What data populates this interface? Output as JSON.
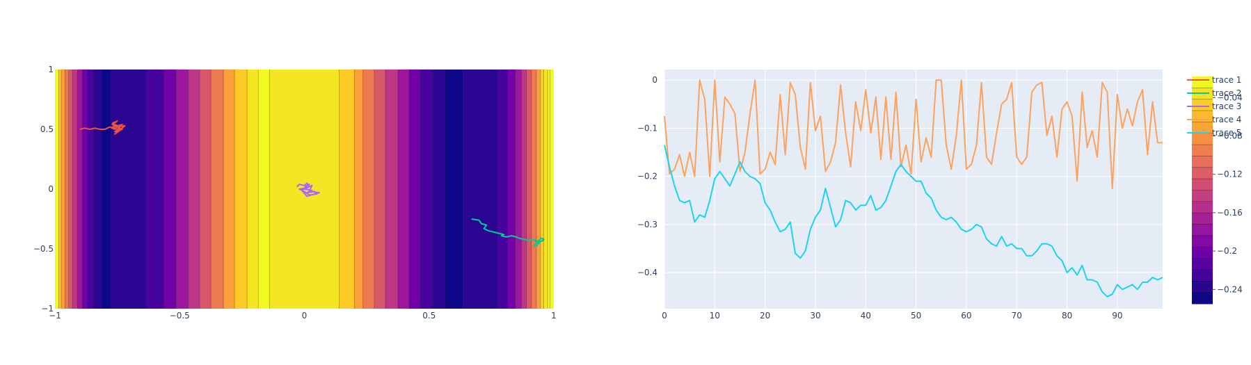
{
  "colors": {
    "plot_bg_right": "#e5ecf6",
    "grid": "#ffffff",
    "text": "#2a3f5f",
    "colorscale": [
      "#0d0887",
      "#46039f",
      "#7201a8",
      "#9c179e",
      "#bd3786",
      "#d8576b",
      "#ed7953",
      "#fb9f3a",
      "#fdca26",
      "#f0f921"
    ]
  },
  "chart_data": [
    {
      "type": "heatmap",
      "subtype": "contour",
      "x_range": [
        -1,
        1
      ],
      "y_range": [
        -1,
        1
      ],
      "xticks": [
        "−1",
        "−0.5",
        "0",
        "0.5",
        "1"
      ],
      "yticks": [
        "1",
        "0.5",
        "0",
        "−0.5",
        "−1"
      ],
      "xtick_values": [
        -1,
        -0.5,
        0,
        0.5,
        1
      ],
      "ytick_values": [
        1,
        0.5,
        0,
        -0.5,
        -1
      ],
      "contour_boundaries": [
        -0.985,
        -0.975,
        -0.96,
        -0.945,
        -0.93,
        -0.91,
        -0.89,
        -0.87,
        -0.845,
        -0.815,
        -0.775,
        -0.635,
        -0.565,
        -0.515,
        -0.465,
        -0.42,
        -0.375,
        -0.325,
        -0.28,
        -0.23,
        -0.185,
        -0.14,
        0.14,
        0.2,
        0.235,
        0.28,
        0.325,
        0.375,
        0.42,
        0.465,
        0.515,
        0.565,
        0.635,
        0.775,
        0.815,
        0.845,
        0.87,
        0.89,
        0.91,
        0.93,
        0.945,
        0.96,
        0.975,
        0.985
      ],
      "contour_bands": [
        9,
        8,
        7,
        6,
        5,
        4,
        3,
        2,
        1,
        0.5,
        0,
        0.5,
        1,
        2,
        3,
        4,
        5,
        6,
        7,
        8,
        8.6,
        9,
        8.6,
        8,
        7,
        6,
        5,
        4,
        3,
        2,
        1,
        0.5,
        0,
        0.5,
        1,
        2,
        3,
        4,
        5,
        6,
        7,
        8,
        8.6,
        9,
        9
      ],
      "traces": [
        {
          "name": "trace 1",
          "color": "#ef553b",
          "center": [
            -0.76,
            0.51
          ],
          "start": [
            -0.9,
            0.5
          ],
          "points": [
            [
              -0.9,
              0.5
            ],
            [
              -0.88,
              0.51
            ],
            [
              -0.86,
              0.5
            ],
            [
              -0.84,
              0.51
            ],
            [
              -0.82,
              0.5
            ],
            [
              -0.8,
              0.5
            ],
            [
              -0.79,
              0.51
            ],
            [
              -0.78,
              0.52
            ],
            [
              -0.76,
              0.5
            ],
            [
              -0.75,
              0.53
            ],
            [
              -0.77,
              0.55
            ],
            [
              -0.75,
              0.57
            ],
            [
              -0.77,
              0.54
            ],
            [
              -0.74,
              0.51
            ],
            [
              -0.76,
              0.48
            ],
            [
              -0.73,
              0.5
            ],
            [
              -0.75,
              0.52
            ],
            [
              -0.72,
              0.53
            ],
            [
              -0.76,
              0.46
            ],
            [
              -0.74,
              0.49
            ],
            [
              -0.77,
              0.52
            ],
            [
              -0.73,
              0.54
            ],
            [
              -0.75,
              0.5
            ]
          ]
        },
        {
          "name": "trace 2",
          "color": "#00cc96",
          "points": [
            [
              0.67,
              -0.25
            ],
            [
              0.7,
              -0.26
            ],
            [
              0.71,
              -0.29
            ],
            [
              0.73,
              -0.3
            ],
            [
              0.72,
              -0.33
            ],
            [
              0.74,
              -0.35
            ],
            [
              0.76,
              -0.36
            ],
            [
              0.78,
              -0.37
            ],
            [
              0.8,
              -0.38
            ],
            [
              0.79,
              -0.39
            ],
            [
              0.81,
              -0.4
            ],
            [
              0.83,
              -0.39
            ],
            [
              0.85,
              -0.4
            ],
            [
              0.86,
              -0.41
            ],
            [
              0.88,
              -0.42
            ],
            [
              0.9,
              -0.43
            ],
            [
              0.92,
              -0.42
            ],
            [
              0.93,
              -0.44
            ],
            [
              0.94,
              -0.43
            ],
            [
              0.95,
              -0.41
            ],
            [
              0.96,
              -0.42
            ],
            [
              0.94,
              -0.45
            ],
            [
              0.93,
              -0.48
            ],
            [
              0.92,
              -0.47
            ],
            [
              0.94,
              -0.44
            ],
            [
              0.96,
              -0.43
            ]
          ]
        },
        {
          "name": "trace 3",
          "color": "#ab63fa",
          "points": [
            [
              -0.03,
              0.02
            ],
            [
              -0.02,
              0.04
            ],
            [
              0.0,
              0.03
            ],
            [
              0.01,
              0.05
            ],
            [
              0.02,
              0.02
            ],
            [
              0.0,
              0.0
            ],
            [
              0.03,
              -0.01
            ],
            [
              0.01,
              -0.03
            ],
            [
              0.04,
              -0.02
            ],
            [
              0.05,
              -0.04
            ],
            [
              0.02,
              -0.05
            ],
            [
              0.0,
              -0.02
            ],
            [
              -0.02,
              0.0
            ],
            [
              0.01,
              0.01
            ],
            [
              0.03,
              0.03
            ],
            [
              0.02,
              -0.02
            ],
            [
              0.06,
              -0.03
            ],
            [
              0.01,
              -0.06
            ],
            [
              -0.01,
              -0.01
            ],
            [
              0.02,
              0.04
            ],
            [
              0.0,
              0.02
            ]
          ]
        }
      ]
    },
    {
      "type": "line",
      "x_range": [
        0,
        99
      ],
      "y_range": [
        -0.475,
        0.022
      ],
      "xticks": [
        "0",
        "10",
        "20",
        "30",
        "40",
        "50",
        "60",
        "70",
        "80",
        "90"
      ],
      "xtick_values": [
        0,
        10,
        20,
        30,
        40,
        50,
        60,
        70,
        80,
        90
      ],
      "yticks": [
        "0",
        "−0.1",
        "−0.2",
        "−0.3",
        "−0.4"
      ],
      "ytick_values": [
        0,
        -0.1,
        -0.2,
        -0.3,
        -0.4
      ],
      "series": [
        {
          "name": "trace 4",
          "color": "#ffa15a",
          "values": [
            -0.075,
            -0.195,
            -0.185,
            -0.155,
            -0.2,
            -0.15,
            -0.2,
            0.0,
            -0.04,
            -0.2,
            0.0,
            -0.17,
            -0.035,
            -0.05,
            -0.07,
            -0.19,
            -0.15,
            -0.07,
            0.0,
            -0.195,
            -0.185,
            -0.15,
            -0.175,
            -0.03,
            -0.155,
            -0.005,
            -0.03,
            -0.14,
            -0.185,
            -0.005,
            -0.105,
            -0.075,
            -0.19,
            -0.17,
            -0.13,
            -0.01,
            -0.11,
            -0.18,
            -0.045,
            -0.105,
            -0.02,
            -0.11,
            -0.035,
            -0.165,
            -0.035,
            -0.165,
            -0.025,
            -0.18,
            -0.135,
            -0.195,
            -0.04,
            -0.17,
            -0.12,
            -0.16,
            -0.0,
            -0.0,
            -0.135,
            -0.185,
            -0.115,
            0.0,
            -0.185,
            -0.175,
            -0.135,
            -0.005,
            -0.16,
            -0.175,
            -0.11,
            -0.05,
            -0.04,
            -0.005,
            -0.16,
            -0.175,
            -0.16,
            -0.025,
            -0.01,
            -0.005,
            -0.115,
            -0.075,
            -0.16,
            -0.06,
            -0.045,
            -0.075,
            -0.21,
            -0.025,
            -0.14,
            -0.105,
            -0.16,
            -0.005,
            -0.025,
            -0.225,
            -0.03,
            -0.1,
            -0.06,
            -0.095,
            -0.045,
            -0.02,
            -0.155,
            -0.045,
            -0.13,
            -0.13
          ]
        },
        {
          "name": "trace 5",
          "color": "#19d3f3",
          "values": [
            -0.135,
            -0.18,
            -0.22,
            -0.25,
            -0.255,
            -0.25,
            -0.295,
            -0.28,
            -0.285,
            -0.25,
            -0.205,
            -0.19,
            -0.205,
            -0.22,
            -0.195,
            -0.17,
            -0.19,
            -0.2,
            -0.205,
            -0.215,
            -0.255,
            -0.27,
            -0.295,
            -0.315,
            -0.31,
            -0.295,
            -0.36,
            -0.37,
            -0.355,
            -0.31,
            -0.285,
            -0.27,
            -0.225,
            -0.265,
            -0.305,
            -0.29,
            -0.25,
            -0.255,
            -0.27,
            -0.26,
            -0.26,
            -0.24,
            -0.27,
            -0.265,
            -0.25,
            -0.22,
            -0.19,
            -0.175,
            -0.19,
            -0.2,
            -0.21,
            -0.21,
            -0.235,
            -0.245,
            -0.27,
            -0.285,
            -0.29,
            -0.285,
            -0.295,
            -0.31,
            -0.315,
            -0.31,
            -0.3,
            -0.305,
            -0.33,
            -0.34,
            -0.345,
            -0.325,
            -0.345,
            -0.34,
            -0.35,
            -0.35,
            -0.365,
            -0.365,
            -0.355,
            -0.34,
            -0.34,
            -0.345,
            -0.365,
            -0.375,
            -0.4,
            -0.39,
            -0.405,
            -0.385,
            -0.415,
            -0.415,
            -0.42,
            -0.44,
            -0.45,
            -0.445,
            -0.425,
            -0.435,
            -0.43,
            -0.425,
            -0.435,
            -0.42,
            -0.42,
            -0.41,
            -0.415,
            -0.41
          ]
        }
      ]
    },
    {
      "type": "legend",
      "entries": [
        {
          "name": "trace 1",
          "color": "#ef553b"
        },
        {
          "name": "trace 2",
          "color": "#00cc96"
        },
        {
          "name": "trace 3",
          "color": "#ab63fa"
        },
        {
          "name": "trace 4",
          "color": "#ffa15a"
        },
        {
          "name": "trace 5",
          "color": "#19d3f3"
        }
      ],
      "colorbar_ticks": [
        "−0.04",
        "−0.08",
        "−0.12",
        "−0.16",
        "−0.2",
        "−0.24"
      ],
      "colorbar_values": [
        -0.04,
        -0.08,
        -0.12,
        -0.16,
        -0.2,
        -0.24
      ],
      "colorbar_range": [
        -0.255,
        -0.018
      ]
    }
  ]
}
